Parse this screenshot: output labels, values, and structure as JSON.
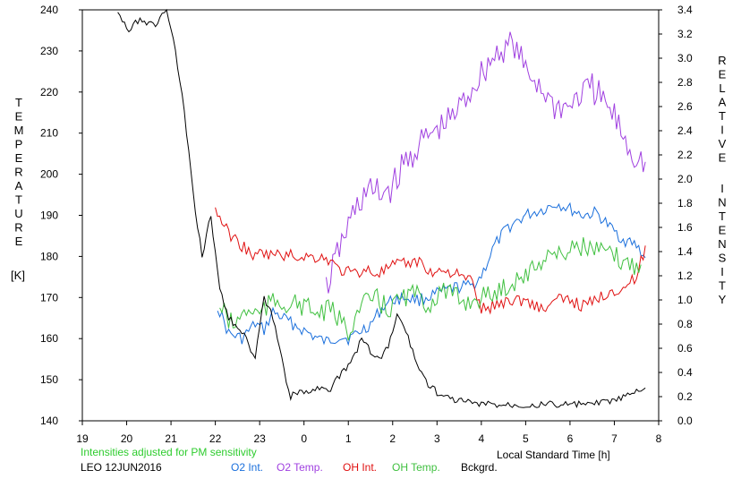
{
  "chart_data": {
    "type": "line",
    "left_axis": {
      "label_letters": [
        "T",
        "E",
        "M",
        "P",
        "E",
        "R",
        "A",
        "T",
        "U",
        "R",
        "E"
      ],
      "unit": "[K]",
      "ylim": [
        140,
        240
      ],
      "ticks": [
        140,
        150,
        160,
        170,
        180,
        190,
        200,
        210,
        220,
        230,
        240
      ]
    },
    "right_axis": {
      "label_letters_1": [
        "R",
        "E",
        "L",
        "A",
        "T",
        "I",
        "V",
        "E"
      ],
      "label_letters_2": [
        "I",
        "N",
        "T",
        "E",
        "N",
        "S",
        "I",
        "T",
        "Y"
      ],
      "ylim": [
        0.0,
        3.4
      ],
      "ticks": [
        "0.0",
        "0.2",
        "0.4",
        "0.6",
        "0.8",
        "1.0",
        "1.2",
        "1.4",
        "1.6",
        "1.8",
        "2.0",
        "2.2",
        "2.4",
        "2.6",
        "2.8",
        "3.0",
        "3.2",
        "3.4"
      ]
    },
    "x_axis": {
      "label": "Local Standard Time [h]",
      "xlim": [
        19,
        32
      ],
      "ticks": [
        19,
        20,
        21,
        22,
        23,
        24,
        25,
        26,
        27,
        28,
        29,
        30,
        31,
        32
      ],
      "tick_labels": [
        "19",
        "20",
        "21",
        "22",
        "23",
        "0",
        "1",
        "2",
        "3",
        "4",
        "5",
        "6",
        "7",
        "8"
      ]
    },
    "note": "Intensities adjusted for PM sensitivity",
    "caption": "LEO 12JUN2016",
    "series": [
      {
        "name": "O2 Int.",
        "color": "#1a6fdc",
        "axis": "right",
        "x": [
          22.05,
          22.3,
          22.6,
          22.9,
          23.1,
          23.3,
          24.3,
          24.5,
          24.8,
          25.0,
          25.2,
          25.5,
          25.8,
          26.0,
          26.3,
          26.6,
          27.0,
          27.4,
          27.8,
          28.0,
          28.3,
          28.6,
          29.0,
          29.4,
          29.7,
          30.0,
          30.3,
          30.6,
          30.9,
          31.2,
          31.5,
          31.7
        ],
        "values": [
          0.95,
          0.72,
          0.68,
          0.8,
          0.75,
          0.9,
          0.68,
          0.65,
          0.7,
          0.68,
          0.72,
          0.8,
          0.95,
          1.0,
          1.02,
          1.0,
          1.05,
          1.1,
          1.12,
          1.2,
          1.45,
          1.6,
          1.7,
          1.75,
          1.8,
          1.75,
          1.7,
          1.72,
          1.6,
          1.5,
          1.45,
          1.35
        ]
      },
      {
        "name": "O2 Temp.",
        "color": "#a040e0",
        "axis": "left",
        "x": [
          24.5,
          24.8,
          25.1,
          25.4,
          25.7,
          26.0,
          26.3,
          26.6,
          26.9,
          27.2,
          27.5,
          27.8,
          28.1,
          28.4,
          28.7,
          29.0,
          29.3,
          29.6,
          29.9,
          30.2,
          30.5,
          30.8,
          31.1,
          31.4,
          31.7
        ],
        "values": [
          172,
          182,
          190,
          196,
          195,
          197,
          203,
          207,
          210,
          212,
          216,
          221,
          226,
          230,
          232,
          225,
          222,
          217,
          216,
          219,
          221,
          217,
          212,
          205,
          203
        ]
      },
      {
        "name": "OH Int.",
        "color": "#e01010",
        "axis": "right",
        "x": [
          22.0,
          22.3,
          22.6,
          22.9,
          23.0,
          24.5,
          24.8,
          25.1,
          25.4,
          25.7,
          26.0,
          26.3,
          26.6,
          26.9,
          27.2,
          27.5,
          27.8,
          28.0,
          28.3,
          28.6,
          29.0,
          29.4,
          29.7,
          30.0,
          30.3,
          30.6,
          30.9,
          31.2,
          31.5,
          31.7
        ],
        "values": [
          1.75,
          1.55,
          1.45,
          1.35,
          1.38,
          1.35,
          1.25,
          1.22,
          1.25,
          1.22,
          1.28,
          1.3,
          1.32,
          1.22,
          1.25,
          1.2,
          1.15,
          0.92,
          0.95,
          1.0,
          1.0,
          0.92,
          1.0,
          1.0,
          0.95,
          1.0,
          1.08,
          1.1,
          1.18,
          1.45
        ]
      },
      {
        "name": "OH Temp.",
        "color": "#40c040",
        "axis": "left",
        "x": [
          22.1,
          22.4,
          22.7,
          23.0,
          23.3,
          24.0,
          24.3,
          24.6,
          25.0,
          25.3,
          25.6,
          25.9,
          26.2,
          26.5,
          26.8,
          27.1,
          27.4,
          27.7,
          28.0,
          28.3,
          28.6,
          28.9,
          29.2,
          29.5,
          29.8,
          30.1,
          30.4,
          30.7,
          31.0,
          31.3,
          31.6
        ],
        "values": [
          168,
          163,
          167,
          166,
          169,
          168,
          166,
          167,
          162,
          168,
          170,
          167,
          170,
          171,
          168,
          172,
          170,
          169,
          170,
          171,
          173,
          175,
          177,
          181,
          180,
          183,
          182,
          181,
          180,
          178,
          178
        ]
      },
      {
        "name": "Bckgrd.",
        "color": "#000000",
        "axis": "left",
        "x": [
          19.8,
          20.0,
          20.3,
          20.6,
          20.9,
          21.1,
          21.3,
          21.5,
          21.7,
          21.9,
          22.1,
          22.3,
          22.6,
          22.9,
          23.1,
          23.3,
          23.6,
          23.7,
          24.0,
          24.3,
          24.6,
          24.9,
          25.1,
          25.3,
          25.5,
          25.7,
          25.9,
          26.1,
          26.3,
          26.5,
          26.8,
          27.1,
          27.5,
          28.0,
          28.5,
          29.0,
          29.5,
          30.0,
          30.5,
          31.0,
          31.3,
          31.5,
          31.7
        ],
        "values": [
          240,
          235,
          238,
          236,
          240,
          230,
          215,
          195,
          180,
          190,
          172,
          165,
          162,
          155,
          170,
          165,
          150,
          146,
          147,
          148,
          148,
          152,
          155,
          160,
          157,
          155,
          158,
          166,
          162,
          155,
          149,
          146,
          145,
          144,
          144,
          144,
          144,
          144,
          144,
          145,
          146,
          147,
          148
        ]
      }
    ]
  }
}
